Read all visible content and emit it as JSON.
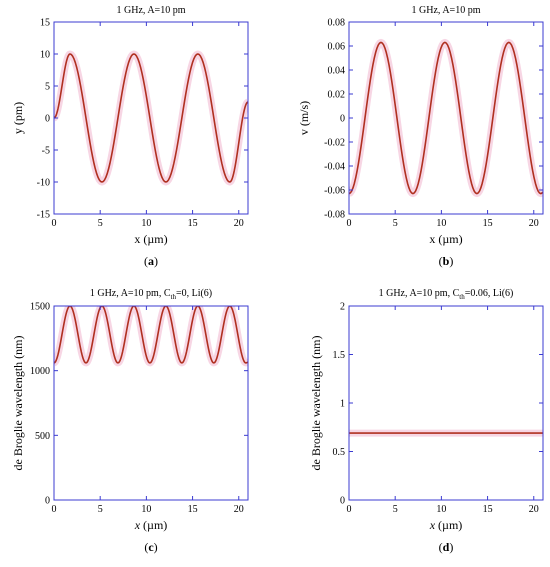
{
  "chart_data": [
    {
      "type": "line",
      "panel_label": "(a)",
      "title_text": "1 GHz, A=10 pm",
      "xlabel": "x (µm)",
      "ylabel": "y (pm)",
      "xlim": [
        0,
        21
      ],
      "ylim": [
        -15,
        15
      ],
      "xticks": [
        "0",
        "5",
        "10",
        "15",
        "20"
      ],
      "xtick_values": [
        0,
        5,
        10,
        15,
        20
      ],
      "yticks": [
        "-15",
        "-10",
        "-5",
        "0",
        "5",
        "10",
        "15"
      ],
      "ytick_values": [
        -15,
        -10,
        -5,
        0,
        5,
        10,
        15
      ],
      "series": [
        {
          "x": [
            0,
            1.73,
            5.19,
            8.65,
            12.11,
            15.57,
            19.03,
            21
          ],
          "y": [
            0,
            10,
            -10,
            10,
            -10,
            10,
            -10,
            2.5
          ],
          "color": "#b03020"
        }
      ]
    },
    {
      "type": "line",
      "panel_label": "(b)",
      "title_text": "1 GHz, A=10 pm",
      "xlabel": "x (µm)",
      "ylabel": "v (m/s)",
      "xlim": [
        0,
        21
      ],
      "ylim": [
        -0.08,
        0.08
      ],
      "xticks": [
        "0",
        "5",
        "10",
        "15",
        "20"
      ],
      "xtick_values": [
        0,
        5,
        10,
        15,
        20
      ],
      "yticks": [
        "-0.08",
        "-0.06",
        "-0.04",
        "-0.02",
        "0",
        "0.02",
        "0.04",
        "0.06",
        "0.08"
      ],
      "ytick_values": [
        -0.08,
        -0.06,
        -0.04,
        -0.02,
        0,
        0.02,
        0.04,
        0.06,
        0.08
      ],
      "series": [
        {
          "x": [
            0,
            3.46,
            6.92,
            10.38,
            13.84,
            17.3,
            20.76,
            21
          ],
          "y": [
            -0.063,
            0.063,
            -0.063,
            0.063,
            -0.063,
            0.063,
            -0.063,
            -0.062
          ],
          "color": "#b03020"
        }
      ]
    },
    {
      "type": "line",
      "panel_label": "(c)",
      "title_main": "1 GHz, A=10 pm, C",
      "title_sub": "th",
      "title_rest": "=0, Li(6)",
      "xlabel": "x (µm)",
      "ylabel": "de Broglie wavelength (nm)",
      "xlim": [
        0,
        21
      ],
      "ylim": [
        0,
        1500
      ],
      "xticks": [
        "0",
        "5",
        "10",
        "15",
        "20"
      ],
      "xtick_values": [
        0,
        5,
        10,
        15,
        20
      ],
      "yticks": [
        "0",
        "500",
        "1000",
        "1500"
      ],
      "ytick_values": [
        0,
        500,
        1000,
        1500
      ],
      "series": [
        {
          "x": [
            0,
            1.73,
            3.46,
            5.19,
            6.92,
            8.65,
            10.38,
            12.11,
            13.84,
            15.57,
            17.3,
            19.03,
            20.76,
            21
          ],
          "y": [
            1060,
            1500,
            1060,
            1500,
            1060,
            1500,
            1060,
            1500,
            1060,
            1500,
            1060,
            1500,
            1060,
            1065
          ],
          "color": "#b03020"
        }
      ]
    },
    {
      "type": "line",
      "panel_label": "(d)",
      "title_main": "1 GHz, A=10 pm, C",
      "title_sub": "th",
      "title_rest": "=0.06, Li(6)",
      "xlabel": "x (µm)",
      "ylabel": "de Broglie wavelength (nm)",
      "xlim": [
        0,
        21
      ],
      "ylim": [
        0,
        2
      ],
      "xticks": [
        "0",
        "5",
        "10",
        "15",
        "20"
      ],
      "xtick_values": [
        0,
        5,
        10,
        15,
        20
      ],
      "yticks": [
        "0",
        "0.5",
        "1",
        "1.5",
        "2"
      ],
      "ytick_values": [
        0,
        0.5,
        1,
        1.5,
        2
      ],
      "series": [
        {
          "x": [
            0,
            21
          ],
          "y": [
            0.69,
            0.69
          ],
          "color": "#b03020"
        }
      ]
    }
  ]
}
